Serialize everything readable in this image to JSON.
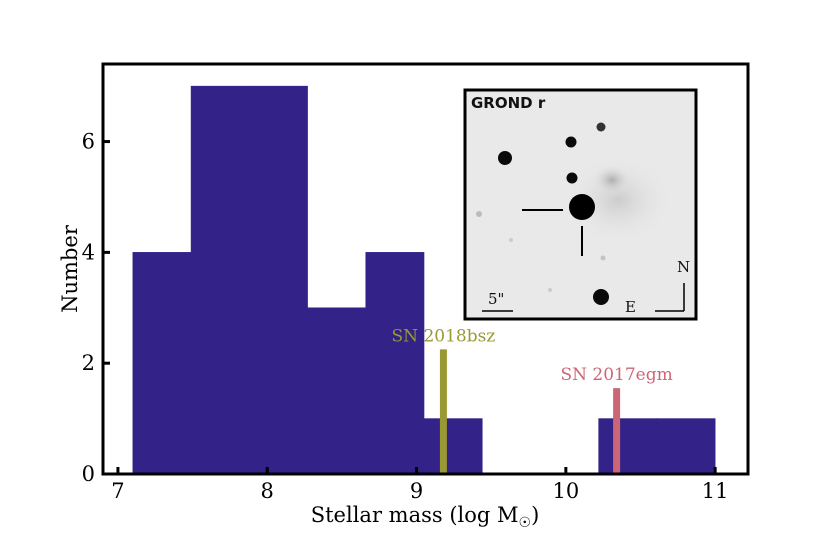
{
  "chart_data": {
    "type": "bar",
    "xlabel": "Stellar mass (log M",
    "xlabel_sub": "☉",
    "xlabel_close": ")",
    "ylabel": "Number",
    "xlim": [
      6.9,
      11.22
    ],
    "ylim": [
      0,
      7.4
    ],
    "x_ticks": [
      {
        "value": 7,
        "label": "7"
      },
      {
        "value": 8,
        "label": "8"
      },
      {
        "value": 9,
        "label": "9"
      },
      {
        "value": 10,
        "label": "10"
      },
      {
        "value": 11,
        "label": "11"
      }
    ],
    "y_ticks": [
      {
        "value": 0,
        "label": "0"
      },
      {
        "value": 2,
        "label": "2"
      },
      {
        "value": 4,
        "label": "4"
      },
      {
        "value": 6,
        "label": "6"
      }
    ],
    "bar_color": "#332288",
    "bins": [
      {
        "x0": 7.1,
        "x1": 7.49,
        "count": 4
      },
      {
        "x0": 7.49,
        "x1": 7.88,
        "count": 7
      },
      {
        "x0": 7.88,
        "x1": 8.27,
        "count": 7
      },
      {
        "x0": 8.27,
        "x1": 8.66,
        "count": 3
      },
      {
        "x0": 8.66,
        "x1": 9.05,
        "count": 4
      },
      {
        "x0": 9.05,
        "x1": 9.44,
        "count": 1
      },
      {
        "x0": 10.22,
        "x1": 10.61,
        "count": 1
      },
      {
        "x0": 10.61,
        "x1": 11.0,
        "count": 1
      }
    ],
    "markers": [
      {
        "label": "SN 2018bsz",
        "x": 9.18,
        "height": 2.25,
        "color": "#999933"
      },
      {
        "label": "SN 2017egm",
        "x": 10.34,
        "height": 1.55,
        "color": "#CC6677"
      }
    ]
  },
  "inset": {
    "title": "GROND r",
    "scale_label": "5\"",
    "compass_north": "N",
    "compass_east": "E"
  }
}
